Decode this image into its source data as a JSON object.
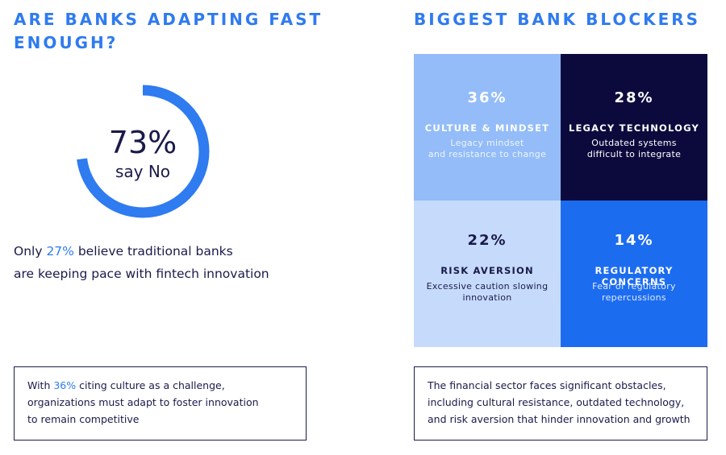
{
  "left": {
    "heading": "ARE BANKS ADAPTING FAST ENOUGH?",
    "donut": {
      "percent_value": 73,
      "percent_label": "73%",
      "sub_label": "say No"
    },
    "stat": {
      "prefix": "Only ",
      "highlight": "27%",
      "line1_rest": " believe traditional banks",
      "line2": "are keeping pace with fintech innovation"
    },
    "callout": {
      "prefix": "With ",
      "highlight": "36%",
      "rest_line1": " citing culture as a challenge,",
      "line2": "organizations must adapt to foster innovation",
      "line3": "to remain competitive"
    }
  },
  "right": {
    "heading": "BIGGEST BANK BLOCKERS",
    "callout": {
      "line1": "The financial sector faces significant obstacles,",
      "line2": "including cultural resistance, outdated technology,",
      "line3": "and risk aversion that hinder innovation and growth"
    }
  },
  "chart_data": [
    {
      "type": "pie",
      "title": "",
      "values": [
        73,
        27
      ],
      "labels": [
        "say No",
        ""
      ],
      "center_label": "73%"
    },
    {
      "type": "table",
      "title": "BIGGEST BANK BLOCKERS",
      "categories": [
        "CULTURE & MINDSET",
        "LEGACY TECHNOLOGY",
        "RISK AVERSION",
        "REGULATORY CONCERNS"
      ],
      "values": [
        36,
        28,
        22,
        14
      ],
      "value_labels": [
        "36%",
        "28%",
        "22%",
        "14%"
      ],
      "descriptions": [
        [
          "Legacy mindset",
          "and resistance to change"
        ],
        [
          "Outdated systems",
          "difficult to integrate"
        ],
        [
          "Excessive caution slowing",
          "innovation"
        ],
        [
          "Fear of regulatory",
          "repercussions"
        ]
      ]
    }
  ],
  "colors": {
    "accent": "#2f7bf0",
    "donut": "#2f7bf0",
    "navy": "#0c0a3d",
    "light_blue": "#93bcf9",
    "pale_blue": "#c6dbfb",
    "bright_blue": "#1c6cf0"
  }
}
